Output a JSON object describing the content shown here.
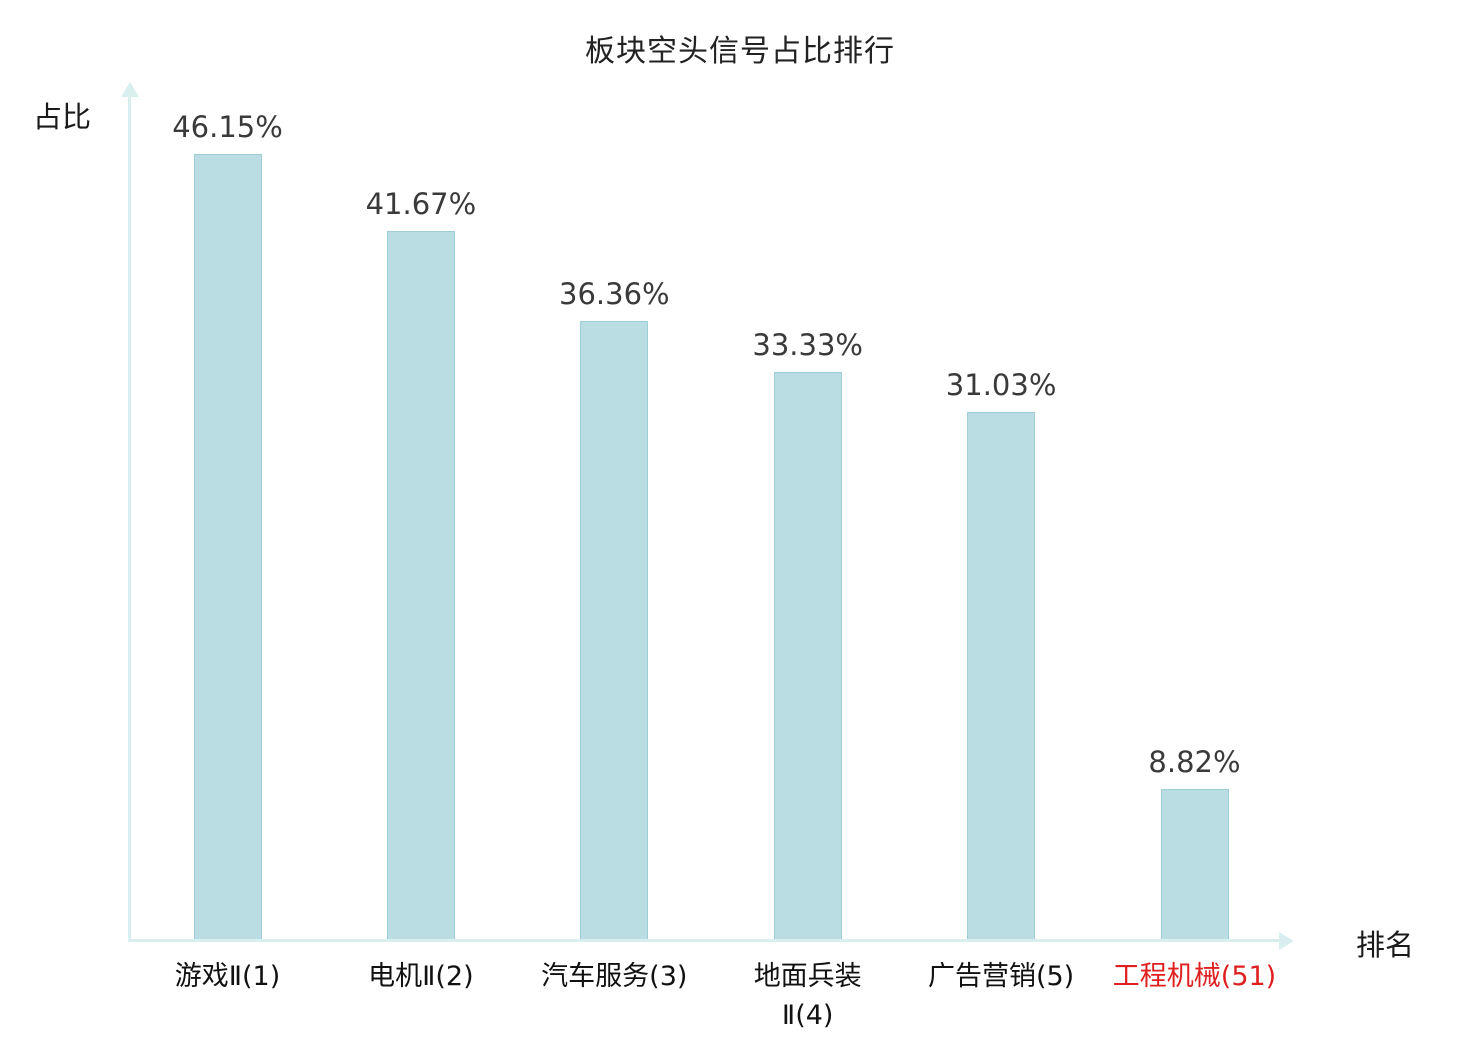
{
  "chart_data": {
    "type": "bar",
    "title": "板块空头信号占比排行",
    "xlabel": "排名",
    "ylabel": "占比",
    "categories": [
      "游戏Ⅱ(1)",
      "电机Ⅱ(2)",
      "汽车服务(3)",
      "地面兵装\nⅡ(4)",
      "广告营销(5)",
      "工程机械(51)"
    ],
    "values": [
      46.15,
      41.67,
      36.36,
      33.33,
      31.03,
      8.82
    ],
    "value_labels": [
      "46.15%",
      "41.67%",
      "36.36%",
      "33.33%",
      "31.03%",
      "8.82%"
    ],
    "highlighted_category_index": 5,
    "ylim": [
      0,
      50
    ],
    "grid": false,
    "legend": null
  },
  "colors": {
    "bar_fill": "#b9dde2",
    "bar_border": "#9fcfd6",
    "axis": "#d9eeef",
    "value_text": "#3a3a3a",
    "category_text": "#111111",
    "highlight": "#e02020"
  }
}
